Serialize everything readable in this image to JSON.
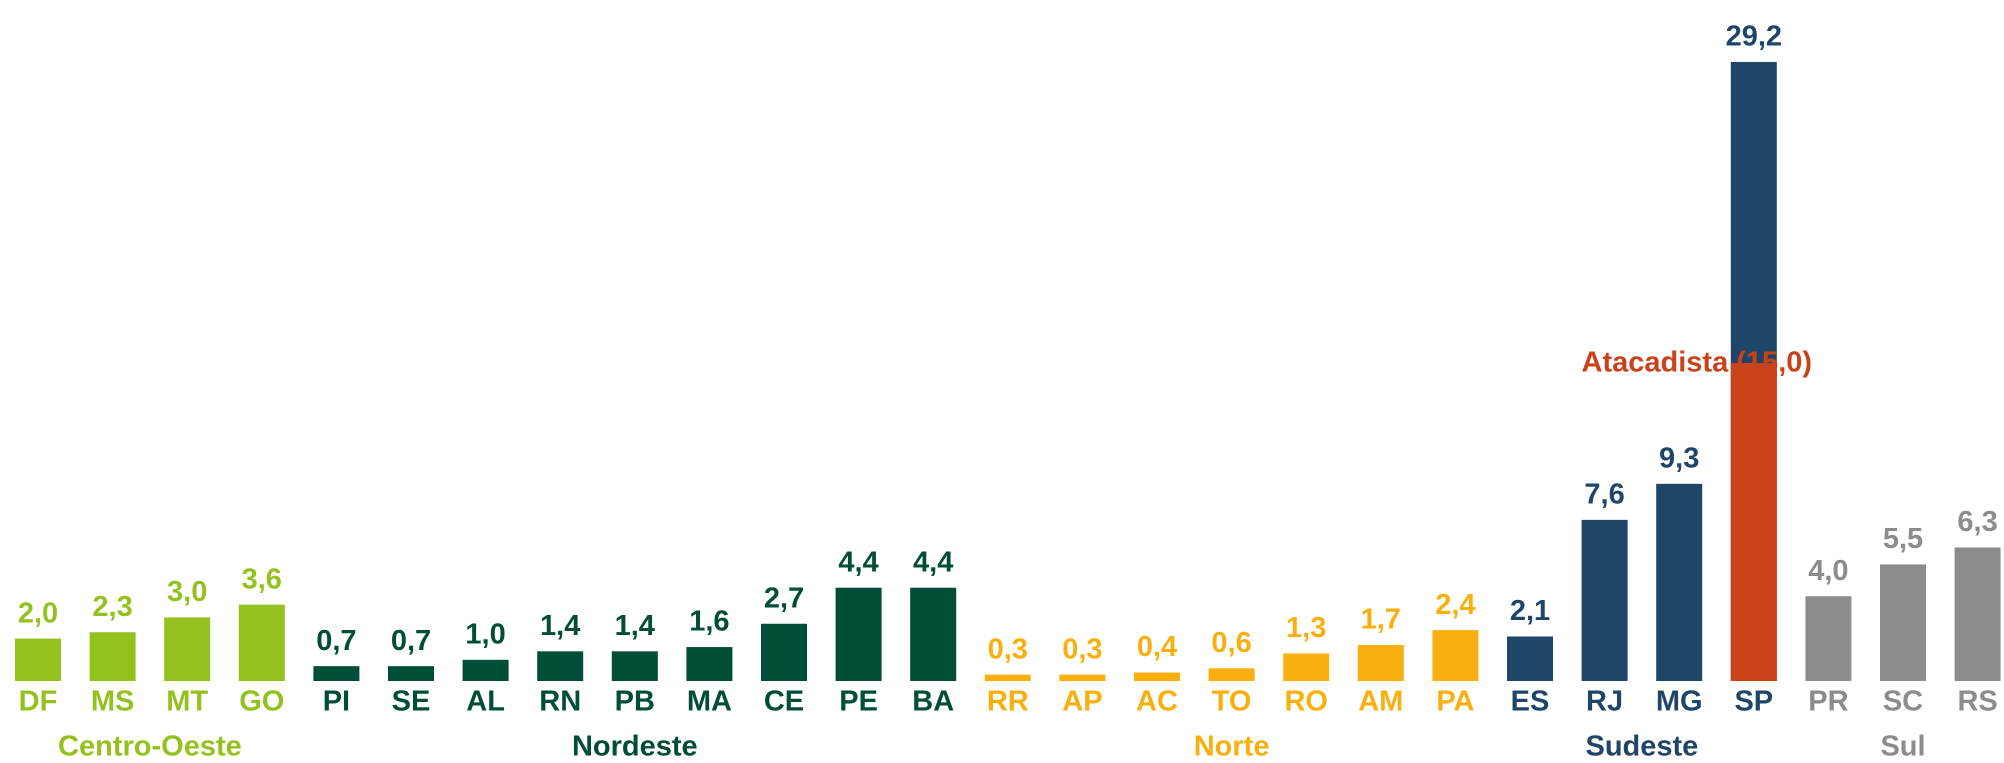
{
  "chart_data": {
    "type": "bar",
    "categories": [
      "DF",
      "MS",
      "MT",
      "GO",
      "PI",
      "SE",
      "AL",
      "RN",
      "PB",
      "MA",
      "CE",
      "PE",
      "BA",
      "RR",
      "AP",
      "AC",
      "TO",
      "RO",
      "AM",
      "PA",
      "ES",
      "RJ",
      "MG",
      "SP",
      "PR",
      "SC",
      "RS"
    ],
    "series": [
      {
        "name": "Centro-Oeste",
        "color": "#95c11f",
        "values": [
          2.0,
          2.3,
          3.0,
          3.6,
          null,
          null,
          null,
          null,
          null,
          null,
          null,
          null,
          null,
          null,
          null,
          null,
          null,
          null,
          null,
          null,
          null,
          null,
          null,
          null,
          null,
          null,
          null
        ],
        "value_labels": [
          "2,0",
          "2,3",
          "3,0",
          "3,6",
          null,
          null,
          null,
          null,
          null,
          null,
          null,
          null,
          null,
          null,
          null,
          null,
          null,
          null,
          null,
          null,
          null,
          null,
          null,
          null,
          null,
          null,
          null
        ]
      },
      {
        "name": "Nordeste",
        "color": "#004d38",
        "values": [
          null,
          null,
          null,
          null,
          0.7,
          0.7,
          1.0,
          1.4,
          1.4,
          1.6,
          2.7,
          4.4,
          4.4,
          null,
          null,
          null,
          null,
          null,
          null,
          null,
          null,
          null,
          null,
          null,
          null,
          null,
          null
        ],
        "value_labels": [
          null,
          null,
          null,
          null,
          "0,7",
          "0,7",
          "1,0",
          "1,4",
          "1,4",
          "1,6",
          "2,7",
          "4,4",
          "4,4",
          null,
          null,
          null,
          null,
          null,
          null,
          null,
          null,
          null,
          null,
          null,
          null,
          null,
          null
        ]
      },
      {
        "name": "Norte",
        "color": "#f9b00f",
        "values": [
          null,
          null,
          null,
          null,
          null,
          null,
          null,
          null,
          null,
          null,
          null,
          null,
          null,
          0.3,
          0.3,
          0.4,
          0.6,
          1.3,
          1.7,
          2.4,
          null,
          null,
          null,
          null,
          null,
          null,
          null
        ],
        "value_labels": [
          null,
          null,
          null,
          null,
          null,
          null,
          null,
          null,
          null,
          null,
          null,
          null,
          null,
          "0,3",
          "0,3",
          "0,4",
          "0,6",
          "1,3",
          "1,7",
          "2,4",
          null,
          null,
          null,
          null,
          null,
          null,
          null
        ]
      },
      {
        "name": "Sudeste",
        "color": "#1f4569",
        "values": [
          null,
          null,
          null,
          null,
          null,
          null,
          null,
          null,
          null,
          null,
          null,
          null,
          null,
          null,
          null,
          null,
          null,
          null,
          null,
          null,
          2.1,
          7.6,
          9.3,
          29.2,
          null,
          null,
          null
        ],
        "value_labels": [
          null,
          null,
          null,
          null,
          null,
          null,
          null,
          null,
          null,
          null,
          null,
          null,
          null,
          null,
          null,
          null,
          null,
          null,
          null,
          null,
          "2,1",
          "7,6",
          "9,3",
          "29,2",
          null,
          null,
          null
        ]
      },
      {
        "name": "Sul",
        "color": "#8c8c8c",
        "values": [
          null,
          null,
          null,
          null,
          null,
          null,
          null,
          null,
          null,
          null,
          null,
          null,
          null,
          null,
          null,
          null,
          null,
          null,
          null,
          null,
          null,
          null,
          null,
          null,
          4.0,
          5.5,
          6.3
        ],
        "value_labels": [
          null,
          null,
          null,
          null,
          null,
          null,
          null,
          null,
          null,
          null,
          null,
          null,
          null,
          null,
          null,
          null,
          null,
          null,
          null,
          null,
          null,
          null,
          null,
          null,
          "4,0",
          "5,5",
          "6,3"
        ]
      }
    ],
    "highlight": {
      "category": "SP",
      "label": "Atacadista (15,0)",
      "value": 15.0,
      "color": "#c9421a"
    },
    "ylim": [
      0,
      30
    ]
  }
}
